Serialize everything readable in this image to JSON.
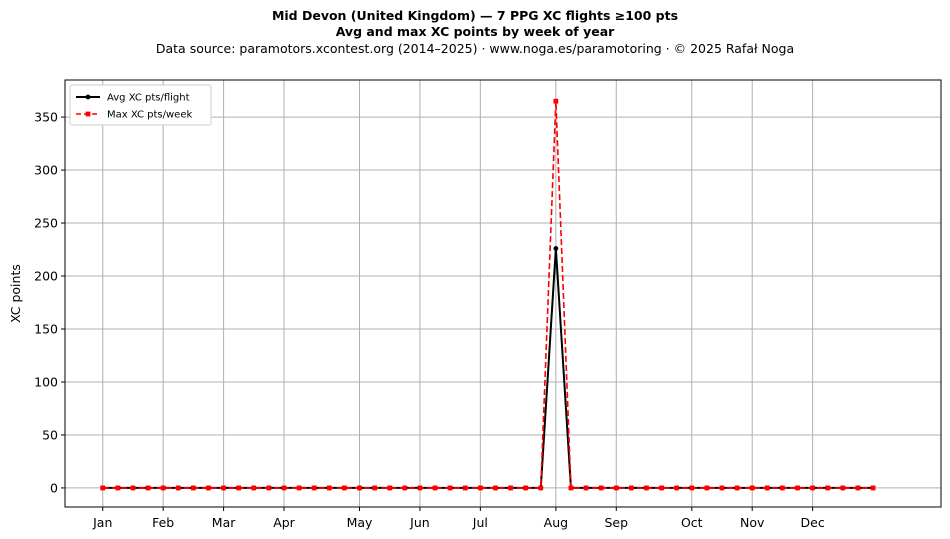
{
  "chart_data": {
    "type": "line",
    "title": "Mid Devon (United Kingdom)  —  7 PPG XC flights ≥100 pts",
    "subtitle": "Avg and max XC points by week of year",
    "source_line": "Data source: paramotors.xcontest.org (2014–2025)  ·  www.noga.es/paramotoring  ·  © 2025 Rafał Noga",
    "xlabel": "",
    "ylabel": "XC points",
    "ylim": [
      -18,
      385
    ],
    "xlim": [
      -2.5,
      55.5
    ],
    "y_ticks": [
      0,
      50,
      100,
      150,
      200,
      250,
      300,
      350
    ],
    "x_ticks": [
      {
        "label": "Jan",
        "week": 0
      },
      {
        "label": "Feb",
        "week": 4
      },
      {
        "label": "Mar",
        "week": 8
      },
      {
        "label": "Apr",
        "week": 12
      },
      {
        "label": "May",
        "week": 17
      },
      {
        "label": "Jun",
        "week": 21
      },
      {
        "label": "Jul",
        "week": 25
      },
      {
        "label": "Aug",
        "week": 30
      },
      {
        "label": "Sep",
        "week": 34
      },
      {
        "label": "Oct",
        "week": 39
      },
      {
        "label": "Nov",
        "week": 43
      },
      {
        "label": "Dec",
        "week": 47
      }
    ],
    "grid": true,
    "legend_position": "top-left",
    "x": [
      0,
      1,
      2,
      3,
      4,
      5,
      6,
      7,
      8,
      9,
      10,
      11,
      12,
      13,
      14,
      15,
      16,
      17,
      18,
      19,
      20,
      21,
      22,
      23,
      24,
      25,
      26,
      27,
      28,
      29,
      30,
      31,
      32,
      33,
      34,
      35,
      36,
      37,
      38,
      39,
      40,
      41,
      42,
      43,
      44,
      45,
      46,
      47,
      48,
      49,
      50,
      51
    ],
    "series": [
      {
        "name": "Avg XC pts/flight",
        "color": "#000000",
        "style": "solid",
        "marker": "circle",
        "values": [
          0,
          0,
          0,
          0,
          0,
          0,
          0,
          0,
          0,
          0,
          0,
          0,
          0,
          0,
          0,
          0,
          0,
          0,
          0,
          0,
          0,
          0,
          0,
          0,
          0,
          0,
          0,
          0,
          0,
          0,
          226,
          0,
          0,
          0,
          0,
          0,
          0,
          0,
          0,
          0,
          0,
          0,
          0,
          0,
          0,
          0,
          0,
          0,
          0,
          0,
          0,
          0
        ]
      },
      {
        "name": "Max XC pts/week",
        "color": "#ff0000",
        "style": "dashed",
        "marker": "square",
        "values": [
          0,
          0,
          0,
          0,
          0,
          0,
          0,
          0,
          0,
          0,
          0,
          0,
          0,
          0,
          0,
          0,
          0,
          0,
          0,
          0,
          0,
          0,
          0,
          0,
          0,
          0,
          0,
          0,
          0,
          0,
          365,
          0,
          0,
          0,
          0,
          0,
          0,
          0,
          0,
          0,
          0,
          0,
          0,
          0,
          0,
          0,
          0,
          0,
          0,
          0,
          0,
          0
        ]
      }
    ]
  }
}
